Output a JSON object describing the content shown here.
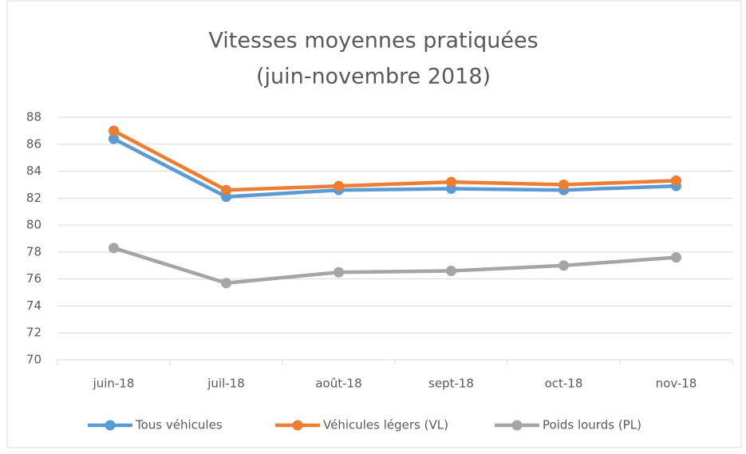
{
  "chart_data": {
    "type": "line",
    "title": "Vitesses moyennes pratiquées",
    "subtitle": "(juin-novembre 2018)",
    "categories": [
      "juin-18",
      "juil-18",
      "août-18",
      "sept-18",
      "oct-18",
      "nov-18"
    ],
    "series": [
      {
        "name": "Tous véhicules",
        "color": "#5b9bd5",
        "values": [
          86.4,
          82.1,
          82.6,
          82.7,
          82.6,
          82.9
        ]
      },
      {
        "name": "Véhicules légers (VL)",
        "color": "#ed7d31",
        "values": [
          87.0,
          82.6,
          82.9,
          83.2,
          83.0,
          83.3
        ]
      },
      {
        "name": "Poids lourds (PL)",
        "color": "#a5a5a5",
        "values": [
          78.3,
          75.7,
          76.5,
          76.6,
          77.0,
          77.6
        ]
      }
    ],
    "ylim": [
      70,
      88
    ],
    "yticks": [
      70,
      72,
      74,
      76,
      78,
      80,
      82,
      84,
      86,
      88
    ],
    "grid": true,
    "legend": "bottom"
  }
}
